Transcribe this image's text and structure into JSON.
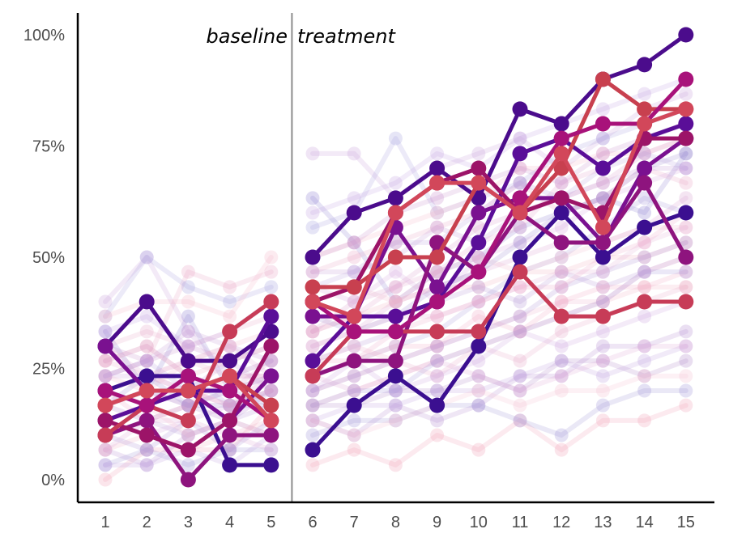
{
  "chart_data": {
    "type": "line",
    "title": "",
    "xlabel": "",
    "ylabel": "",
    "x": [
      1,
      2,
      3,
      4,
      5,
      6,
      7,
      8,
      9,
      10,
      11,
      12,
      13,
      14,
      15
    ],
    "xlim": [
      1,
      15
    ],
    "ylim": [
      0,
      1
    ],
    "y_ticks": [
      {
        "value": 0,
        "label": "0%"
      },
      {
        "value": 0.25,
        "label": "25%"
      },
      {
        "value": 0.5,
        "label": "50%"
      },
      {
        "value": 0.75,
        "label": "75%"
      },
      {
        "value": 1,
        "label": "100%"
      }
    ],
    "x_tick_labels": [
      "1",
      "2",
      "3",
      "4",
      "5",
      "6",
      "7",
      "8",
      "9",
      "10",
      "11",
      "12",
      "13",
      "14",
      "15"
    ],
    "phase_change_after": 5,
    "phase_labels": {
      "baseline": "baseline",
      "treatment": "treatment"
    },
    "grid": false,
    "legend": "none",
    "highlighted_series": [
      {
        "color": "#4b0c8c",
        "baseline": [
          0.3,
          0.4,
          0.267,
          0.267,
          0.333
        ],
        "treatment": [
          0.5,
          0.6,
          0.633,
          0.7,
          0.633,
          0.833,
          0.8,
          0.9,
          0.933,
          1.0
        ]
      },
      {
        "color": "#3b0f90",
        "baseline": [
          0.2,
          0.233,
          0.233,
          0.033,
          0.033
        ],
        "treatment": [
          0.067,
          0.167,
          0.233,
          0.167,
          0.3,
          0.5,
          0.6,
          0.5,
          0.567,
          0.6
        ]
      },
      {
        "color": "#5a0e98",
        "baseline": [
          0.133,
          0.167,
          0.2,
          0.2,
          0.367
        ],
        "treatment": [
          0.267,
          0.367,
          0.367,
          0.4,
          0.533,
          0.733,
          0.767,
          0.7,
          0.767,
          0.8
        ]
      },
      {
        "color": "#7a1190",
        "baseline": [
          0.3,
          0.2,
          0.2,
          0.133,
          0.233
        ],
        "treatment": [
          0.367,
          0.367,
          0.567,
          0.433,
          0.6,
          0.633,
          0.633,
          0.533,
          0.7,
          0.767
        ]
      },
      {
        "color": "#8e147e",
        "baseline": [
          0.1,
          0.133,
          0.0,
          0.1,
          0.1
        ],
        "treatment": [
          0.233,
          0.267,
          0.267,
          0.533,
          0.467,
          0.6,
          0.533,
          0.533,
          0.667,
          0.5
        ]
      },
      {
        "color": "#9c1468",
        "baseline": [
          0.133,
          0.1,
          0.067,
          0.133,
          0.3
        ],
        "treatment": [
          0.4,
          0.433,
          0.6,
          0.667,
          0.7,
          0.6,
          0.633,
          0.6,
          0.767,
          0.767
        ]
      },
      {
        "color": "#c73c57",
        "baseline": [
          0.1,
          0.167,
          0.133,
          0.333,
          0.4
        ],
        "treatment": [
          0.233,
          0.333,
          0.333,
          0.333,
          0.333,
          0.467,
          0.367,
          0.367,
          0.4,
          0.4
        ]
      },
      {
        "color": "#c8404f",
        "baseline": [
          0.167,
          0.2,
          0.2,
          0.233,
          0.167
        ],
        "treatment": [
          0.433,
          0.433,
          0.5,
          0.5,
          0.667,
          0.6,
          0.7,
          0.9,
          0.833,
          0.833
        ]
      },
      {
        "color": "#a8127a",
        "baseline": [
          0.2,
          0.167,
          0.233,
          0.2,
          0.133
        ],
        "treatment": [
          0.4,
          0.333,
          0.333,
          0.4,
          0.467,
          0.633,
          0.767,
          0.8,
          0.8,
          0.9
        ]
      },
      {
        "color": "#d2475a",
        "baseline": [
          0.167,
          0.2,
          0.2,
          0.233,
          0.133
        ],
        "treatment": [
          0.4,
          0.367,
          0.6,
          0.667,
          0.667,
          0.6,
          0.733,
          0.567,
          0.8,
          0.833
        ]
      }
    ],
    "faded_series": [
      {
        "color": "#8d7fd0",
        "baseline": [
          0.333,
          0.2,
          0.367,
          0.2,
          0.233
        ],
        "treatment": [
          0.633,
          0.533,
          0.4,
          0.467,
          0.5,
          0.567,
          0.6,
          0.633,
          0.6,
          0.733
        ]
      },
      {
        "color": "#c9a0dc",
        "baseline": [
          0.4,
          0.5,
          0.333,
          0.233,
          0.233
        ],
        "treatment": [
          0.733,
          0.733,
          0.633,
          0.7,
          0.733,
          0.767,
          0.7,
          0.767,
          0.833,
          0.867
        ]
      },
      {
        "color": "#f0a0b8",
        "baseline": [
          0.0,
          0.067,
          0.067,
          0.067,
          0.167
        ],
        "treatment": [
          0.033,
          0.067,
          0.033,
          0.1,
          0.067,
          0.133,
          0.067,
          0.133,
          0.133,
          0.167
        ]
      },
      {
        "color": "#b48cd2",
        "baseline": [
          0.067,
          0.033,
          0.1,
          0.133,
          0.2
        ],
        "treatment": [
          0.133,
          0.1,
          0.167,
          0.133,
          0.167,
          0.233,
          0.233,
          0.3,
          0.3,
          0.333
        ]
      },
      {
        "color": "#e8a5c6",
        "baseline": [
          0.233,
          0.267,
          0.467,
          0.433,
          0.467
        ],
        "treatment": [
          0.467,
          0.5,
          0.533,
          0.567,
          0.6,
          0.667,
          0.6,
          0.633,
          0.7,
          0.667
        ]
      },
      {
        "color": "#a7a0e0",
        "baseline": [
          0.367,
          0.5,
          0.433,
          0.4,
          0.433
        ],
        "treatment": [
          0.567,
          0.6,
          0.767,
          0.6,
          0.633,
          0.667,
          0.733,
          0.767,
          0.8,
          0.833
        ]
      },
      {
        "color": "#d9a0d0",
        "baseline": [
          0.133,
          0.167,
          0.2,
          0.167,
          0.233
        ],
        "treatment": [
          0.3,
          0.333,
          0.4,
          0.433,
          0.467,
          0.5,
          0.533,
          0.533,
          0.567,
          0.633
        ]
      },
      {
        "color": "#f2b0c0",
        "baseline": [
          0.267,
          0.3,
          0.233,
          0.267,
          0.3
        ],
        "treatment": [
          0.333,
          0.367,
          0.4,
          0.433,
          0.433,
          0.467,
          0.467,
          0.5,
          0.5,
          0.533
        ]
      },
      {
        "color": "#b089c8",
        "baseline": [
          0.167,
          0.133,
          0.167,
          0.133,
          0.1
        ],
        "treatment": [
          0.167,
          0.167,
          0.2,
          0.2,
          0.233,
          0.2,
          0.267,
          0.267,
          0.233,
          0.267
        ]
      },
      {
        "color": "#c49ad8",
        "baseline": [
          0.233,
          0.267,
          0.333,
          0.3,
          0.267
        ],
        "treatment": [
          0.467,
          0.467,
          0.5,
          0.567,
          0.533,
          0.6,
          0.633,
          0.667,
          0.7,
          0.7
        ]
      },
      {
        "color": "#e6a8c8",
        "baseline": [
          0.3,
          0.333,
          0.3,
          0.333,
          0.367
        ],
        "treatment": [
          0.2,
          0.233,
          0.267,
          0.233,
          0.3,
          0.267,
          0.333,
          0.367,
          0.4,
          0.433
        ]
      },
      {
        "color": "#9f95d8",
        "baseline": [
          0.033,
          0.067,
          0.033,
          0.067,
          0.067
        ],
        "treatment": [
          0.1,
          0.133,
          0.133,
          0.167,
          0.167,
          0.133,
          0.1,
          0.167,
          0.2,
          0.2
        ]
      },
      {
        "color": "#f4b8c8",
        "baseline": [
          0.367,
          0.4,
          0.4,
          0.367,
          0.5
        ],
        "treatment": [
          0.5,
          0.533,
          0.567,
          0.6,
          0.633,
          0.7,
          0.7,
          0.733,
          0.733,
          0.767
        ]
      },
      {
        "color": "#cba4de",
        "baseline": [
          0.233,
          0.233,
          0.2,
          0.267,
          0.2
        ],
        "treatment": [
          0.2,
          0.267,
          0.2,
          0.233,
          0.267,
          0.333,
          0.3,
          0.333,
          0.367,
          0.4
        ]
      },
      {
        "color": "#b596d6",
        "baseline": [
          0.1,
          0.133,
          0.1,
          0.133,
          0.167
        ],
        "treatment": [
          0.267,
          0.3,
          0.333,
          0.4,
          0.433,
          0.4,
          0.467,
          0.433,
          0.467,
          0.5
        ]
      },
      {
        "color": "#e3a4cf",
        "baseline": [
          0.167,
          0.2,
          0.167,
          0.2,
          0.233
        ],
        "treatment": [
          0.333,
          0.367,
          0.433,
          0.467,
          0.533,
          0.567,
          0.667,
          0.7,
          0.767,
          0.8
        ]
      },
      {
        "color": "#f1b2c2",
        "baseline": [
          0.067,
          0.1,
          0.067,
          0.1,
          0.133
        ],
        "treatment": [
          0.167,
          0.2,
          0.233,
          0.267,
          0.3,
          0.333,
          0.367,
          0.4,
          0.433,
          0.433
        ]
      },
      {
        "color": "#a899dc",
        "baseline": [
          0.2,
          0.167,
          0.233,
          0.167,
          0.167
        ],
        "treatment": [
          0.233,
          0.267,
          0.3,
          0.333,
          0.4,
          0.467,
          0.5,
          0.567,
          0.633,
          0.6
        ]
      },
      {
        "color": "#d8a8e0",
        "baseline": [
          0.133,
          0.1,
          0.133,
          0.167,
          0.2
        ],
        "treatment": [
          0.433,
          0.4,
          0.467,
          0.4,
          0.5,
          0.533,
          0.567,
          0.633,
          0.667,
          0.7
        ]
      },
      {
        "color": "#eeb0cc",
        "baseline": [
          0.267,
          0.233,
          0.267,
          0.233,
          0.267
        ],
        "treatment": [
          0.267,
          0.3,
          0.267,
          0.3,
          0.333,
          0.367,
          0.4,
          0.4,
          0.467,
          0.5
        ]
      },
      {
        "color": "#bfa0e0",
        "baseline": [
          0.033,
          0.033,
          0.067,
          0.033,
          0.1
        ],
        "treatment": [
          0.133,
          0.167,
          0.167,
          0.2,
          0.2,
          0.233,
          0.267,
          0.233,
          0.267,
          0.3
        ]
      },
      {
        "color": "#c991cc",
        "baseline": [
          0.3,
          0.267,
          0.3,
          0.267,
          0.3
        ],
        "treatment": [
          0.5,
          0.533,
          0.6,
          0.633,
          0.667,
          0.7,
          0.667,
          0.733,
          0.767,
          0.8
        ]
      },
      {
        "color": "#f3bacd",
        "baseline": [
          0.233,
          0.2,
          0.267,
          0.3,
          0.333
        ],
        "treatment": [
          0.4,
          0.433,
          0.4,
          0.467,
          0.5,
          0.467,
          0.5,
          0.533,
          0.567,
          0.567
        ]
      },
      {
        "color": "#9e8ed2",
        "baseline": [
          0.167,
          0.233,
          0.167,
          0.167,
          0.2
        ],
        "treatment": [
          0.367,
          0.333,
          0.367,
          0.433,
          0.467,
          0.533,
          0.6,
          0.633,
          0.7,
          0.733
        ]
      },
      {
        "color": "#e0a9d6",
        "baseline": [
          0.067,
          0.133,
          0.133,
          0.1,
          0.067
        ],
        "treatment": [
          0.233,
          0.2,
          0.233,
          0.267,
          0.233,
          0.2,
          0.233,
          0.267,
          0.3,
          0.3
        ]
      },
      {
        "color": "#c4a4e4",
        "baseline": [
          0.333,
          0.367,
          0.3,
          0.333,
          0.4
        ],
        "treatment": [
          0.6,
          0.633,
          0.667,
          0.733,
          0.7,
          0.767,
          0.8,
          0.833,
          0.867,
          0.9
        ]
      },
      {
        "color": "#f0aac4",
        "baseline": [
          0.2,
          0.133,
          0.167,
          0.233,
          0.233
        ],
        "treatment": [
          0.267,
          0.267,
          0.3,
          0.3,
          0.367,
          0.333,
          0.4,
          0.433,
          0.433,
          0.467
        ]
      },
      {
        "color": "#ad90d4",
        "baseline": [
          0.1,
          0.067,
          0.133,
          0.067,
          0.133
        ],
        "treatment": [
          0.2,
          0.233,
          0.267,
          0.3,
          0.333,
          0.367,
          0.433,
          0.467,
          0.5,
          0.533
        ]
      },
      {
        "color": "#dba0cc",
        "baseline": [
          0.267,
          0.3,
          0.233,
          0.2,
          0.267
        ],
        "treatment": [
          0.333,
          0.4,
          0.433,
          0.5,
          0.567,
          0.6,
          0.633,
          0.667,
          0.733,
          0.767
        ]
      },
      {
        "color": "#f6c0d0",
        "baseline": [
          0.133,
          0.167,
          0.1,
          0.133,
          0.1
        ],
        "treatment": [
          0.133,
          0.1,
          0.133,
          0.167,
          0.2,
          0.167,
          0.2,
          0.2,
          0.233,
          0.233
        ]
      },
      {
        "color": "#b9a2e0",
        "baseline": [
          0.233,
          0.267,
          0.2,
          0.233,
          0.267
        ],
        "treatment": [
          0.433,
          0.467,
          0.533,
          0.533,
          0.6,
          0.667,
          0.633,
          0.7,
          0.733,
          0.7
        ]
      },
      {
        "color": "#e4b0d6",
        "baseline": [
          0.3,
          0.233,
          0.267,
          0.3,
          0.233
        ],
        "treatment": [
          0.3,
          0.333,
          0.367,
          0.367,
          0.4,
          0.433,
          0.467,
          0.467,
          0.533,
          0.567
        ]
      },
      {
        "color": "#a495da",
        "baseline": [
          0.167,
          0.2,
          0.167,
          0.2,
          0.167
        ],
        "treatment": [
          0.167,
          0.2,
          0.2,
          0.267,
          0.3,
          0.333,
          0.367,
          0.4,
          0.467,
          0.467
        ]
      },
      {
        "color": "#efa9c8",
        "baseline": [
          0.2,
          0.233,
          0.2,
          0.167,
          0.2
        ],
        "treatment": [
          0.233,
          0.267,
          0.333,
          0.367,
          0.4,
          0.433,
          0.433,
          0.5,
          0.533,
          0.6
        ]
      }
    ]
  }
}
